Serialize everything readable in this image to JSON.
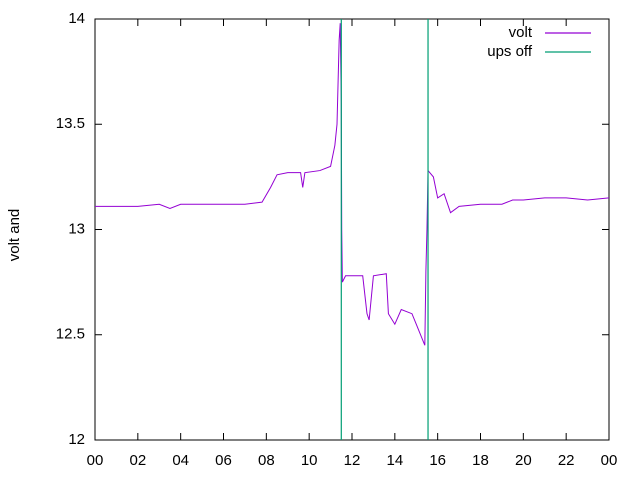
{
  "chart_data": {
    "type": "line",
    "ylabel": "volt and",
    "xlim": [
      0,
      24
    ],
    "xticks": [
      {
        "value": 0,
        "label": "00"
      },
      {
        "value": 2,
        "label": "02"
      },
      {
        "value": 4,
        "label": "04"
      },
      {
        "value": 6,
        "label": "06"
      },
      {
        "value": 8,
        "label": "08"
      },
      10,
      12,
      14,
      16,
      18,
      20,
      22,
      {
        "value": 24,
        "label": "00"
      }
    ],
    "ylim": [
      12,
      14
    ],
    "yticks": [
      12,
      12.5,
      13,
      13.5,
      14
    ],
    "legend": "top-right",
    "series": [
      {
        "name": "volt",
        "color": "#9400d3",
        "x": [
          0,
          1,
          2,
          3,
          3.5,
          4,
          5,
          6,
          7,
          7.8,
          8.2,
          8.5,
          9,
          9.6,
          9.7,
          9.8,
          10.5,
          11,
          11.2,
          11.3,
          11.4,
          11.45,
          11.5,
          11.52,
          11.55,
          11.7,
          12.5,
          12.7,
          12.8,
          13,
          13.6,
          13.7,
          14,
          14.3,
          14.8,
          15,
          15.4,
          15.45,
          15.5,
          15.55,
          15.8,
          16,
          16.3,
          16.6,
          17,
          18,
          19,
          19.5,
          20,
          21,
          22,
          23,
          24
        ],
        "values": [
          13.11,
          13.11,
          13.11,
          13.12,
          13.1,
          13.12,
          13.12,
          13.12,
          13.12,
          13.13,
          13.2,
          13.26,
          13.27,
          13.27,
          13.2,
          13.27,
          13.28,
          13.3,
          13.4,
          13.5,
          13.9,
          13.98,
          13.6,
          13.0,
          12.75,
          12.78,
          12.78,
          12.6,
          12.57,
          12.78,
          12.79,
          12.6,
          12.55,
          12.62,
          12.6,
          12.55,
          12.45,
          12.8,
          13.0,
          13.28,
          13.25,
          13.15,
          13.17,
          13.08,
          13.11,
          13.12,
          13.12,
          13.14,
          13.14,
          13.15,
          13.15,
          13.14,
          13.15
        ]
      },
      {
        "name": "ups off",
        "color": "#009e73",
        "style": "impulses",
        "x": [
          11.5,
          15.55
        ],
        "values": [
          14,
          14
        ]
      }
    ]
  }
}
